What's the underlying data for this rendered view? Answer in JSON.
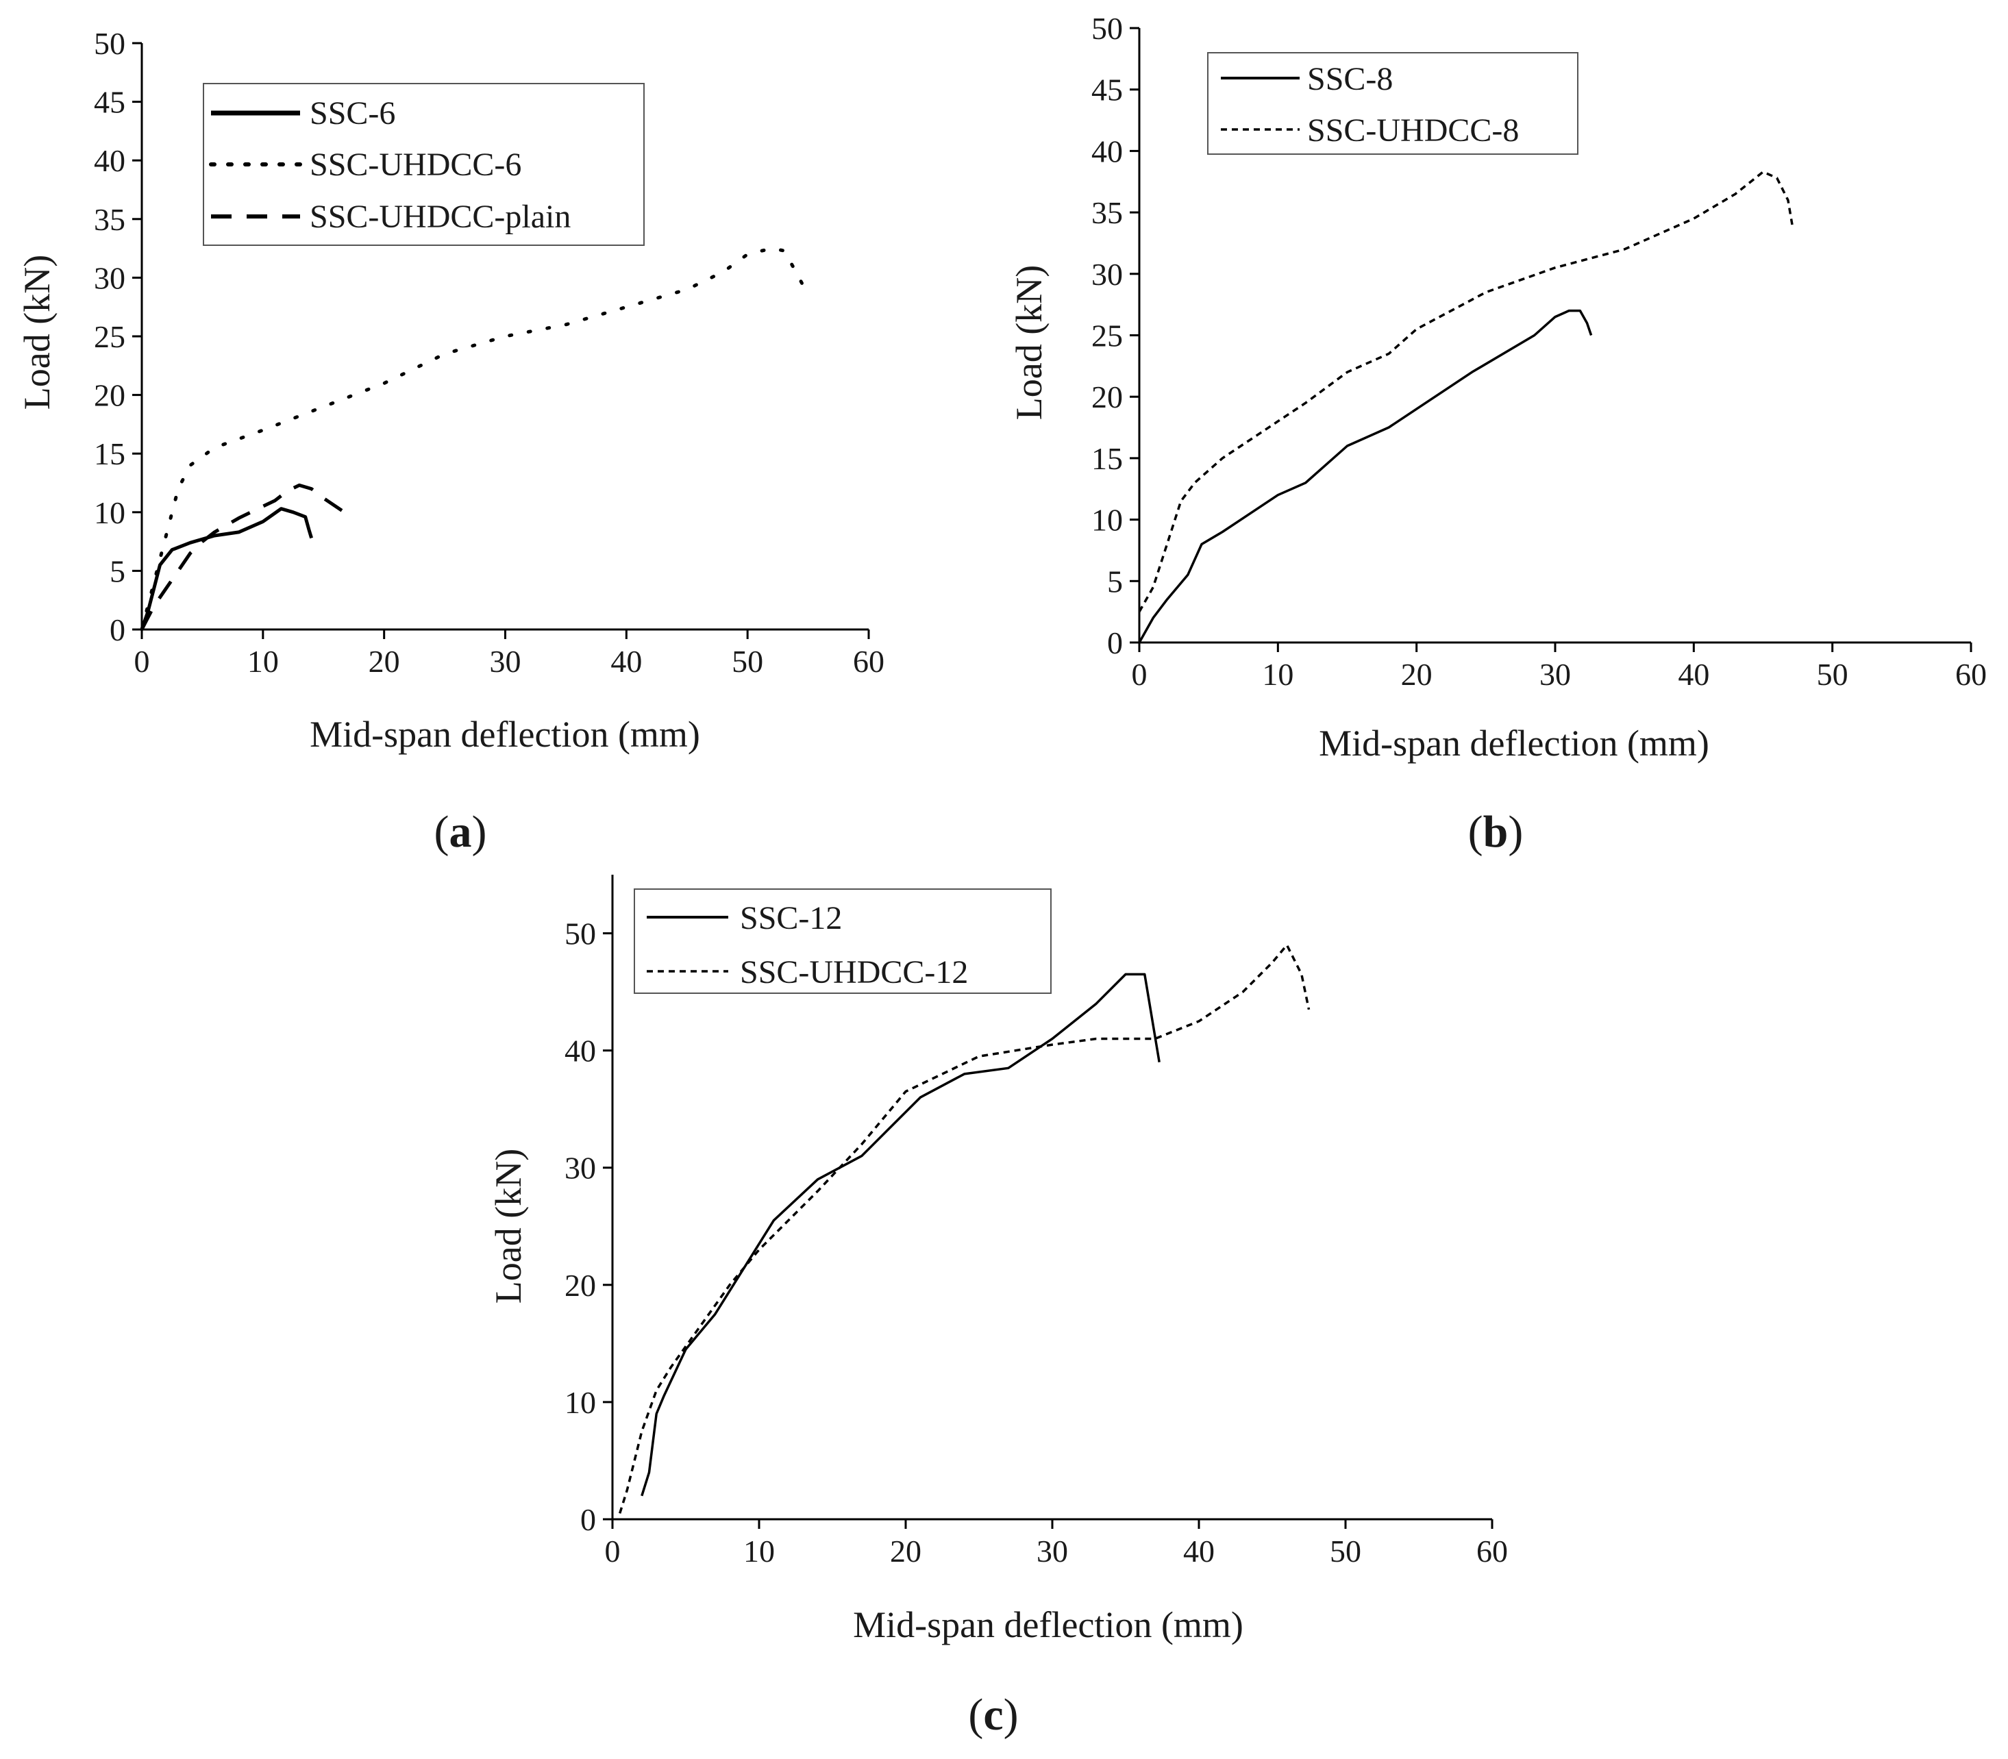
{
  "chart_data": [
    {
      "id": "a",
      "type": "line",
      "panel_label": "(a)",
      "panel_letter": "a",
      "xlabel": "Mid-span deflection (mm)",
      "ylabel": "Load (kN)",
      "xlim": [
        0,
        60
      ],
      "ylim": [
        0,
        50
      ],
      "x_ticks": [
        0,
        10,
        20,
        30,
        40,
        50,
        60
      ],
      "y_ticks": [
        0,
        5,
        10,
        15,
        20,
        25,
        30,
        35,
        40,
        45,
        50
      ],
      "grid": false,
      "legend_position": "top-left",
      "series": [
        {
          "name": "SSC-6",
          "style": "solid",
          "x": [
            0,
            0.5,
            1,
            1.5,
            2.5,
            4,
            6,
            8,
            10,
            11.5,
            12.5,
            13.5,
            13.8,
            14
          ],
          "y": [
            0,
            1.5,
            3.5,
            5.5,
            6.8,
            7.4,
            8,
            8.3,
            9.2,
            10.3,
            10,
            9.6,
            8.5,
            7.8
          ]
        },
        {
          "name": "SSC-UHDCC-6",
          "style": "dotted",
          "x": [
            0,
            0.5,
            1,
            1.5,
            2,
            3,
            4,
            6,
            10,
            15,
            20,
            25,
            30,
            35,
            40,
            45,
            48,
            50,
            52,
            53,
            54,
            55
          ],
          "y": [
            0,
            2,
            4,
            6,
            8,
            12,
            14,
            15.5,
            17,
            19,
            21,
            23.5,
            25,
            26,
            27.5,
            29,
            30.5,
            32,
            32.5,
            32.3,
            30.5,
            28.5
          ]
        },
        {
          "name": "SSC-UHDCC-plain",
          "style": "dashed",
          "x": [
            0,
            0.5,
            1,
            2,
            3,
            4,
            5,
            6,
            8,
            10,
            11,
            12,
            13,
            14,
            15,
            16,
            17
          ],
          "y": [
            0,
            1,
            2,
            3.5,
            5,
            6.5,
            7.5,
            8.3,
            9.5,
            10.5,
            11,
            11.8,
            12.3,
            12,
            11.2,
            10.5,
            9.8
          ]
        }
      ]
    },
    {
      "id": "b",
      "type": "line",
      "panel_label": "(b)",
      "panel_letter": "b",
      "xlabel": "Mid-span deflection (mm)",
      "ylabel": "Load (kN)",
      "xlim": [
        0,
        60
      ],
      "ylim": [
        0,
        50
      ],
      "x_ticks": [
        0,
        10,
        20,
        30,
        40,
        50,
        60
      ],
      "y_ticks": [
        0,
        5,
        10,
        15,
        20,
        25,
        30,
        35,
        40,
        45,
        50
      ],
      "grid": false,
      "legend_position": "top-left",
      "series": [
        {
          "name": "SSC-8",
          "style": "solid",
          "x": [
            0,
            1,
            2,
            3.5,
            4.5,
            6,
            8,
            10,
            12,
            15,
            18,
            20,
            24,
            28.5,
            30,
            31,
            31.8,
            32.3,
            32.6
          ],
          "y": [
            0,
            2,
            3.5,
            5.5,
            8,
            9,
            10.5,
            12,
            13,
            16,
            17.5,
            19,
            22,
            25,
            26.5,
            27,
            27,
            26,
            25
          ]
        },
        {
          "name": "SSC-UHDCC-8",
          "style": "short-dashed",
          "x": [
            0,
            1,
            2,
            3,
            4,
            6,
            8,
            10,
            12,
            15,
            18,
            20,
            25,
            30,
            35,
            40,
            43,
            45,
            46,
            46.8,
            47.1
          ],
          "y": [
            2.5,
            4.5,
            8,
            11.5,
            13,
            15,
            16.5,
            18,
            19.5,
            22,
            23.5,
            25.5,
            28.5,
            30.5,
            32,
            34.5,
            36.5,
            38.3,
            37.8,
            36,
            34
          ]
        }
      ]
    },
    {
      "id": "c",
      "type": "line",
      "panel_label": "(c)",
      "panel_letter": "c",
      "xlabel": "Mid-span deflection (mm)",
      "ylabel": "Load (kN)",
      "xlim": [
        0,
        60
      ],
      "ylim": [
        0,
        55
      ],
      "x_ticks": [
        0,
        10,
        20,
        30,
        40,
        50,
        60
      ],
      "y_ticks": [
        0,
        10,
        20,
        30,
        40,
        50
      ],
      "grid": false,
      "legend_position": "top-left",
      "series": [
        {
          "name": "SSC-12",
          "style": "solid",
          "x": [
            2,
            2.5,
            3,
            3.5,
            5,
            7,
            9,
            11,
            14,
            17,
            21,
            24,
            27,
            30,
            33,
            35,
            36.3,
            37.3
          ],
          "y": [
            2,
            4,
            9,
            10.5,
            14.5,
            17.5,
            21.5,
            25.5,
            29,
            31,
            36,
            38,
            38.5,
            41,
            44,
            46.5,
            46.5,
            39
          ]
        },
        {
          "name": "SSC-UHDCC-12",
          "style": "short-dashed",
          "x": [
            0.5,
            1,
            1.5,
            2,
            3,
            4,
            6,
            8,
            10,
            14,
            17,
            20,
            25,
            30,
            33,
            37,
            40,
            43,
            45,
            46,
            47,
            47.5
          ],
          "y": [
            0.5,
            2.5,
            5,
            7.5,
            11,
            13,
            16.5,
            20,
            23,
            28,
            32,
            36.5,
            39.5,
            40.5,
            41,
            41,
            42.5,
            45,
            47.5,
            49,
            46.5,
            43.5
          ]
        }
      ]
    }
  ]
}
